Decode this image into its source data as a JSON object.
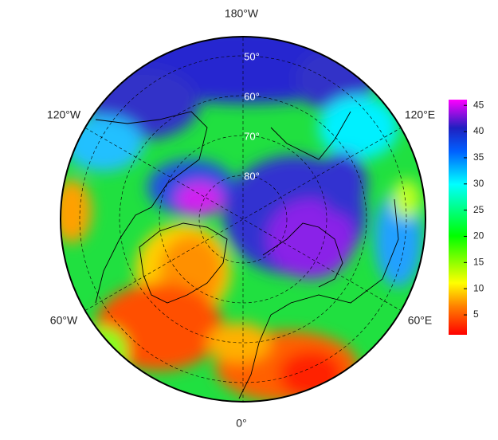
{
  "map": {
    "longitude_labels": [
      "180°W",
      "120°W",
      "120°E",
      "60°W",
      "60°E",
      "0°"
    ],
    "latitude_labels": [
      "50°",
      "60°",
      "70°",
      "80°"
    ],
    "colorbar": {
      "lim": [
        1.2,
        46.1
      ],
      "ticks": [
        5,
        10,
        15,
        20,
        25,
        30,
        35,
        40,
        45
      ]
    }
  }
}
